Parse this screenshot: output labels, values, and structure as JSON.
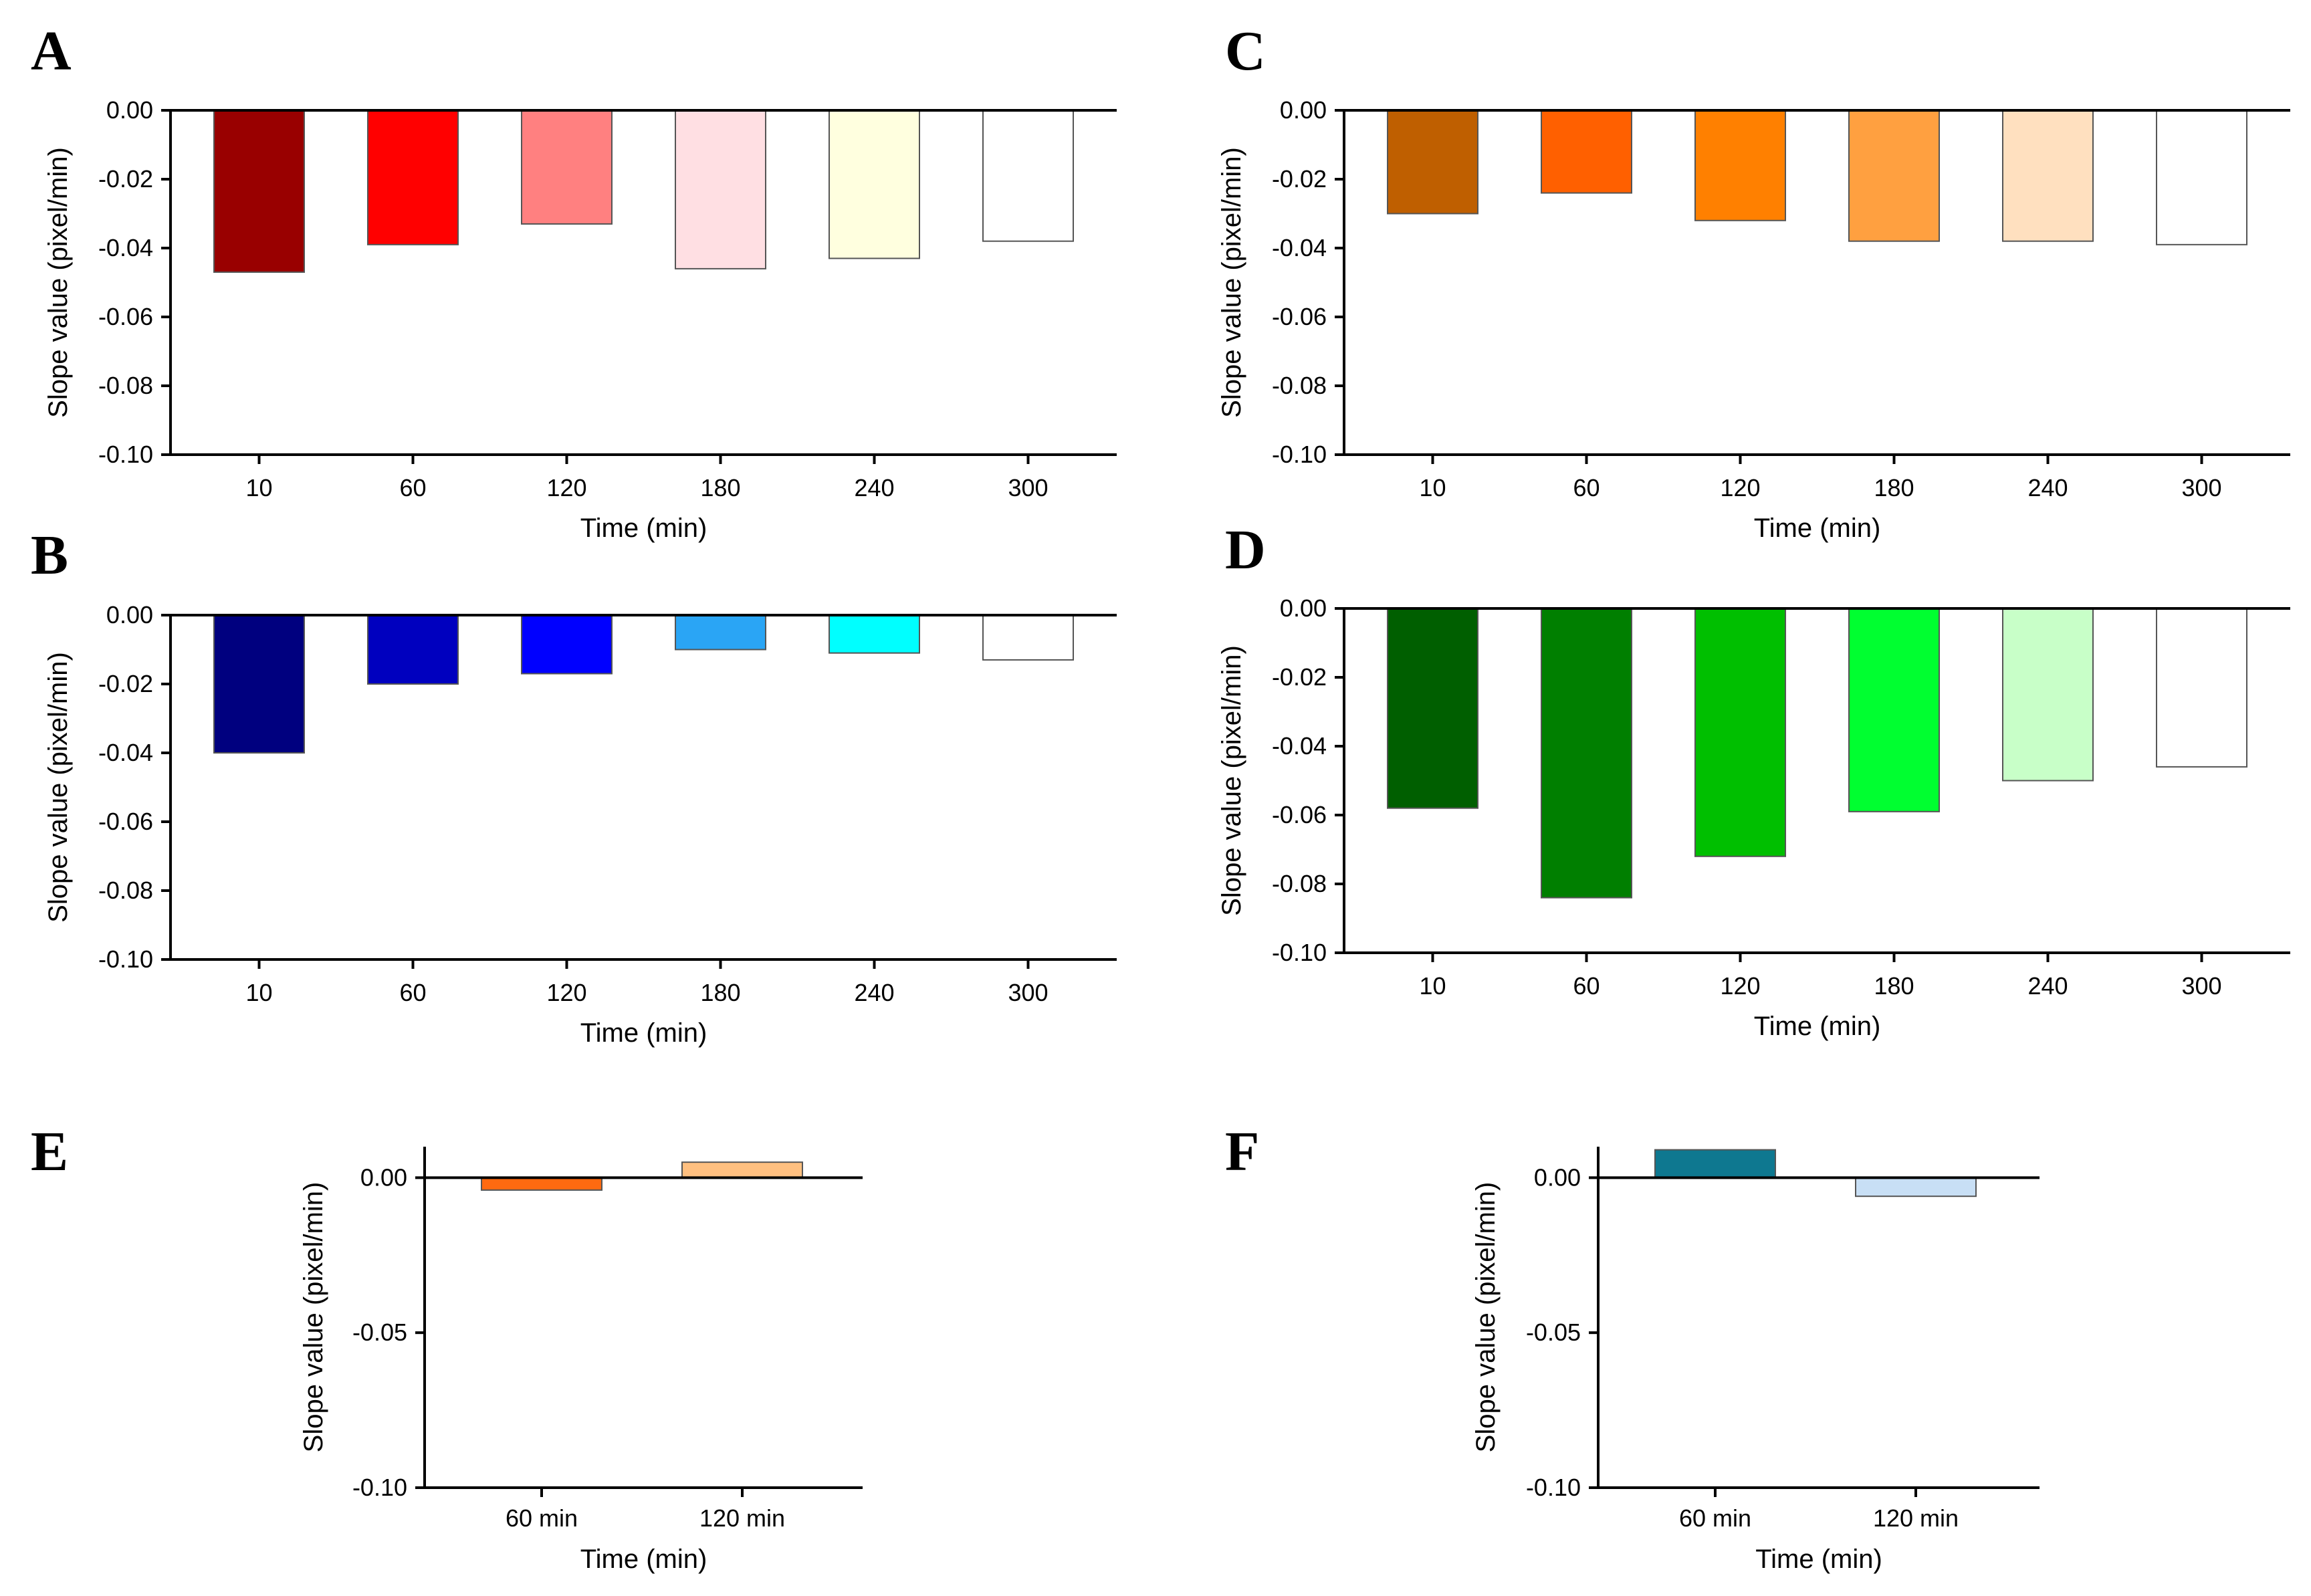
{
  "chart_data": [
    {
      "panel": "A",
      "type": "bar",
      "xlabel": "Time  (min)",
      "ylabel": "Slope value (pixel/min)",
      "ylim": [
        -0.1,
        0.0
      ],
      "yticks": [
        "0.00",
        "-0.02",
        "-0.04",
        "-0.06",
        "-0.08",
        "-0.10"
      ],
      "categories": [
        "10",
        "60",
        "120",
        "180",
        "240",
        "300"
      ],
      "values": [
        -0.047,
        -0.039,
        -0.033,
        -0.046,
        -0.043,
        -0.038
      ],
      "colors": [
        "#990000",
        "#ff0000",
        "#ff8080",
        "#ffdfe3",
        "#ffffdf",
        "#ffffff"
      ]
    },
    {
      "panel": "B",
      "type": "bar",
      "xlabel": "Time  (min)",
      "ylabel": "Slope value (pixel/min)",
      "ylim": [
        -0.1,
        0.0
      ],
      "yticks": [
        "0.00",
        "-0.02",
        "-0.04",
        "-0.06",
        "-0.08",
        "-0.10"
      ],
      "categories": [
        "10",
        "60",
        "120",
        "180",
        "240",
        "300"
      ],
      "values": [
        -0.04,
        -0.02,
        -0.017,
        -0.01,
        -0.011,
        -0.013
      ],
      "colors": [
        "#00007f",
        "#0000bf",
        "#0000ff",
        "#2aa5f5",
        "#00ffff",
        "#ffffff"
      ]
    },
    {
      "panel": "C",
      "type": "bar",
      "xlabel": "Time  (min)",
      "ylabel": "Slope value (pixel/min)",
      "ylim": [
        -0.1,
        0.0
      ],
      "yticks": [
        "0.00",
        "-0.02",
        "-0.04",
        "-0.06",
        "-0.08",
        "-0.10"
      ],
      "categories": [
        "10",
        "60",
        "120",
        "180",
        "240",
        "300"
      ],
      "values": [
        -0.03,
        -0.024,
        -0.032,
        -0.038,
        -0.038,
        -0.039
      ],
      "colors": [
        "#bf5f00",
        "#ff6000",
        "#ff8000",
        "#ffa040",
        "#ffe0bf",
        "#ffffff"
      ]
    },
    {
      "panel": "D",
      "type": "bar",
      "xlabel": "Time  (min)",
      "ylabel": "Slope value (pixel/min)",
      "ylim": [
        -0.1,
        0.0
      ],
      "yticks": [
        "0.00",
        "-0.02",
        "-0.04",
        "-0.06",
        "-0.08",
        "-0.10"
      ],
      "categories": [
        "10",
        "60",
        "120",
        "180",
        "240",
        "300"
      ],
      "values": [
        -0.058,
        -0.084,
        -0.072,
        -0.059,
        -0.05,
        -0.046
      ],
      "colors": [
        "#005f00",
        "#007f00",
        "#00bf00",
        "#00ff30",
        "#c8ffc8",
        "#ffffff"
      ]
    },
    {
      "panel": "E",
      "type": "bar",
      "xlabel": "Time  (min)",
      "ylabel": "Slope value (pixel/min)",
      "ylim": [
        -0.1,
        0.01
      ],
      "yticks": [
        "0.00",
        "-0.05",
        "-0.10"
      ],
      "categories": [
        "60 min",
        "120 min"
      ],
      "values": [
        -0.004,
        0.005
      ],
      "colors": [
        "#ff6a10",
        "#ffc080"
      ]
    },
    {
      "panel": "F",
      "type": "bar",
      "xlabel": "Time  (min)",
      "ylabel": "Slope value (pixel/min)",
      "ylim": [
        -0.1,
        0.01
      ],
      "yticks": [
        "0.00",
        "-0.05",
        "-0.10"
      ],
      "categories": [
        "60 min",
        "120 min"
      ],
      "values": [
        0.009,
        -0.006
      ],
      "colors": [
        "#0e7890",
        "#c8dff5"
      ]
    }
  ]
}
